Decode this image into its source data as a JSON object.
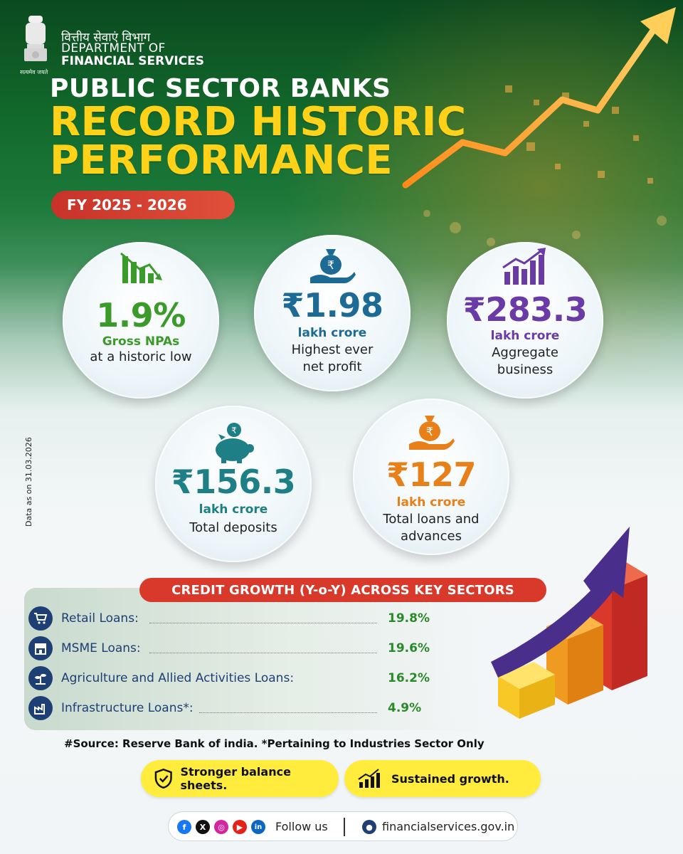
{
  "header": {
    "dept_hindi": "वित्तीय सेवाएं विभाग",
    "dept_line1": "DEPARTMENT OF",
    "dept_line2": "FINANCIAL SERVICES",
    "motto": "सत्यमेव जयते"
  },
  "title": {
    "line1": "PUBLIC SECTOR BANKS",
    "line2": "RECORD HISTORIC",
    "line3": "PERFORMANCE",
    "fy": "FY 2025 - 2026"
  },
  "stats": [
    {
      "value": "1.9%",
      "unit": "Gross NPAs",
      "desc1": "at a historic low",
      "desc2": "",
      "icon": "declining-chart-icon"
    },
    {
      "value": "₹1.98",
      "unit": "lakh crore",
      "desc1": "Highest ever",
      "desc2": "net profit",
      "icon": "money-bag-hand-icon"
    },
    {
      "value": "₹283.3",
      "unit": "lakh crore",
      "desc1": "Aggregate",
      "desc2": "business",
      "icon": "rising-chart-icon"
    },
    {
      "value": "₹156.3",
      "unit": "lakh crore",
      "desc1": "Total deposits",
      "desc2": "",
      "icon": "piggy-bank-icon"
    },
    {
      "value": "₹127",
      "unit": "lakh crore",
      "desc1": "Total loans and",
      "desc2": "advances",
      "icon": "money-bag-hand-icon"
    }
  ],
  "side_note": "Data as on 31.03.2026",
  "credit_growth": {
    "title": "CREDIT GROWTH (Y-o-Y) ACROSS KEY SECTORS",
    "rows": [
      {
        "label": "Retail Loans:",
        "value": "19.8%",
        "icon": "shopping-cart-icon"
      },
      {
        "label": "MSME Loans:",
        "value": "19.6%",
        "icon": "storefront-icon"
      },
      {
        "label": "Agriculture and Allied Activities Loans:",
        "value": "16.2%",
        "icon": "agriculture-icon"
      },
      {
        "label": "Infrastructure Loans*:",
        "value": "4.9%",
        "icon": "factory-icon"
      }
    ]
  },
  "source": "#Source: Reserve Bank of india. *Pertaining to Industries Sector Only",
  "pills": {
    "left": "Stronger balance sheets.",
    "right": "Sustained growth."
  },
  "footer": {
    "follow": "Follow us",
    "website": "financialservices.gov.in"
  },
  "colors": {
    "title_yellow": "#ffd21a",
    "red_pill": "#d8392b",
    "navy": "#1d3f73",
    "green_value": "#2a8a2a",
    "yellow_pill": "#ffec3d"
  }
}
